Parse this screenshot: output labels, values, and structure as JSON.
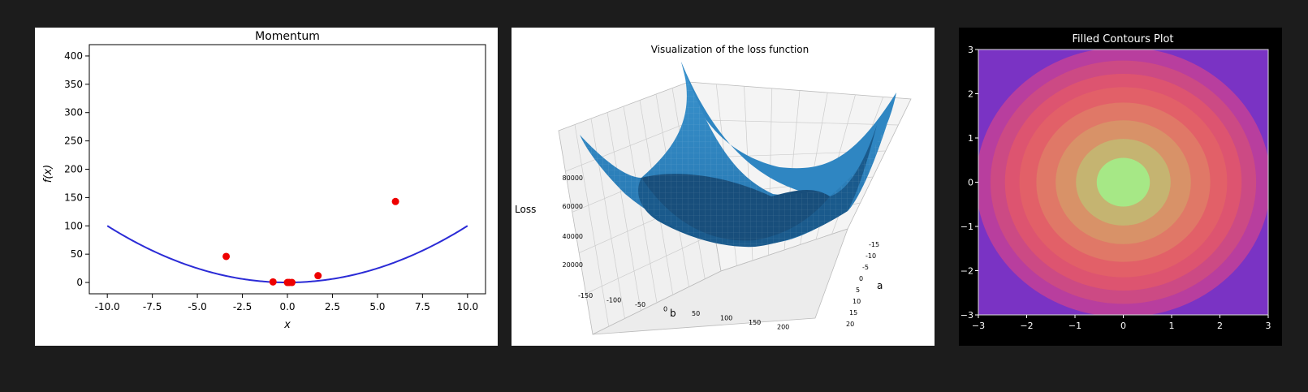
{
  "chart_data": [
    {
      "type": "line",
      "title": "Momentum",
      "xlabel": "x",
      "ylabel": "f(x)",
      "xlim": [
        -11,
        11
      ],
      "ylim": [
        -20,
        420
      ],
      "xticks": [
        "-10.0",
        "-7.5",
        "-5.0",
        "-2.5",
        "0.0",
        "2.5",
        "5.0",
        "7.5",
        "10.0"
      ],
      "yticks": [
        "0",
        "50",
        "100",
        "150",
        "200",
        "250",
        "300",
        "350",
        "400"
      ],
      "curve": {
        "function": "x^2",
        "x_range": [
          -10,
          10
        ],
        "color": "#2b2bd6"
      },
      "points": {
        "color": "#ee0000",
        "x": [
          6.0,
          -3.4,
          1.7,
          -0.8,
          0.0,
          0.1,
          0.25
        ],
        "y": [
          143,
          46,
          12,
          1,
          0,
          0,
          0
        ]
      }
    },
    {
      "type": "surface",
      "title": "Visualization of the loss function",
      "xlabel": "b",
      "ylabel": "a",
      "zlabel": "Loss",
      "xticks": [
        "-150",
        "-100",
        "-50",
        "0",
        "50",
        "100",
        "150",
        "200"
      ],
      "yticks": [
        "-15",
        "-10",
        "-5",
        "0",
        "5",
        "10",
        "15",
        "20"
      ],
      "zticks": [
        "20000",
        "40000",
        "60000",
        "80000"
      ],
      "color": "#2e86c1"
    },
    {
      "type": "contourf",
      "title": "Filled Contours Plot",
      "xlim": [
        -3,
        3
      ],
      "ylim": [
        -3,
        3
      ],
      "xticks": [
        "−3",
        "−2",
        "−1",
        "0",
        "1",
        "2",
        "3"
      ],
      "yticks": [
        "−3",
        "−2",
        "−1",
        "0",
        "1",
        "2",
        "3"
      ],
      "levels": [
        {
          "radius": 4.4,
          "color": "#7a33c4"
        },
        {
          "radius": 3.05,
          "color": "#b83e9e"
        },
        {
          "radius": 2.75,
          "color": "#cc4a84"
        },
        {
          "radius": 2.45,
          "color": "#dd5470"
        },
        {
          "radius": 2.15,
          "color": "#e26068"
        },
        {
          "radius": 1.8,
          "color": "#e07867"
        },
        {
          "radius": 1.4,
          "color": "#d89268"
        },
        {
          "radius": 0.98,
          "color": "#c5b471"
        },
        {
          "radius": 0.55,
          "color": "#a6e886"
        }
      ]
    }
  ]
}
